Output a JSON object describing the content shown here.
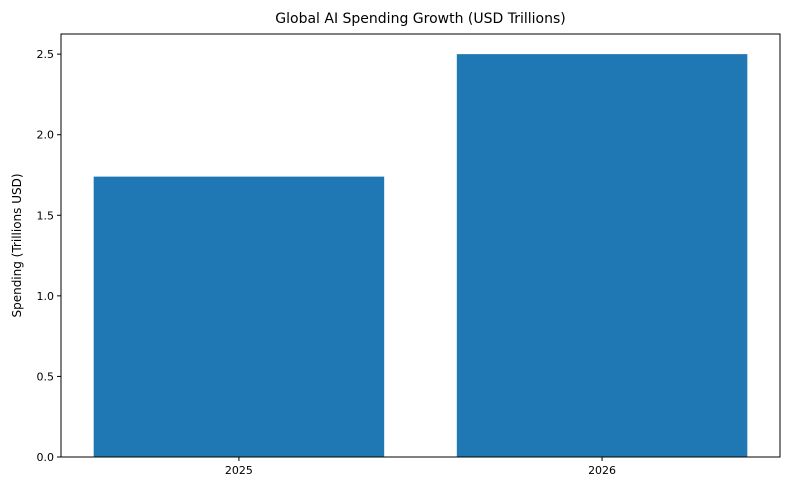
{
  "chart_data": {
    "type": "bar",
    "title": "Global AI Spending Growth (USD Trillions)",
    "xlabel": "",
    "ylabel": "Spending (Trillions USD)",
    "categories": [
      "2025",
      "2026"
    ],
    "values": [
      1.74,
      2.5
    ],
    "ylim": [
      0,
      2.625
    ],
    "yticks": [
      0.0,
      0.5,
      1.0,
      1.5,
      2.0,
      2.5
    ],
    "ytick_labels": [
      "0.0",
      "0.5",
      "1.0",
      "1.5",
      "2.0",
      "2.5"
    ],
    "bar_color": "#1f77b4",
    "grid": false
  }
}
